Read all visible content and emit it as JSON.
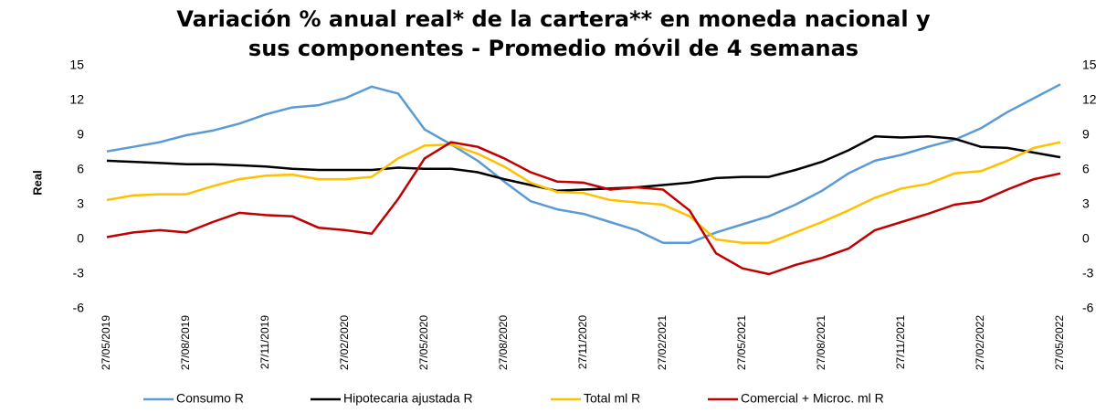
{
  "chart_data": {
    "type": "line",
    "title": [
      "Variación % anual real* de la cartera** en moneda nacional y",
      "sus componentes - Promedio móvil de 4 semanas"
    ],
    "ylabel": "Real",
    "categories": [
      "27/05/2019",
      null,
      null,
      "27/08/2019",
      null,
      null,
      "27/11/2019",
      null,
      null,
      "27/02/2020",
      null,
      null,
      "27/05/2020",
      null,
      null,
      "27/08/2020",
      null,
      null,
      "27/11/2020",
      null,
      null,
      "27/02/2021",
      null,
      null,
      "27/05/2021",
      null,
      null,
      "27/08/2021",
      null,
      null,
      "27/11/2021",
      null,
      null,
      "27/02/2022",
      null,
      null,
      "27/05/2022"
    ],
    "series": [
      {
        "name": "Consumo R",
        "color": "#5b9bd5",
        "values": [
          7.6,
          8.0,
          8.4,
          9.0,
          9.4,
          10.0,
          10.8,
          11.4,
          11.6,
          12.2,
          13.2,
          12.6,
          9.5,
          8.2,
          6.8,
          5.0,
          3.3,
          2.6,
          2.2,
          1.5,
          0.8,
          -0.3,
          -0.3,
          0.6,
          1.3,
          2.0,
          3.0,
          4.2,
          5.7,
          6.8,
          7.3,
          8.0,
          8.6,
          9.6,
          11.0,
          12.2,
          13.4
        ]
      },
      {
        "name": "Hipotecaria ajustada R",
        "color": "#000000",
        "values": [
          6.8,
          6.7,
          6.6,
          6.5,
          6.5,
          6.4,
          6.3,
          6.1,
          6.0,
          6.0,
          6.0,
          6.2,
          6.1,
          6.1,
          5.8,
          5.2,
          4.7,
          4.2,
          4.3,
          4.4,
          4.5,
          4.7,
          4.9,
          5.3,
          5.4,
          5.4,
          6.0,
          6.7,
          7.7,
          8.9,
          8.8,
          8.9,
          8.7,
          8.0,
          7.9,
          7.5,
          7.1
        ]
      },
      {
        "name": "Total ml R",
        "color": "#ffc000",
        "values": [
          3.4,
          3.8,
          3.9,
          3.9,
          4.6,
          5.2,
          5.5,
          5.6,
          5.2,
          5.2,
          5.4,
          7.0,
          8.1,
          8.2,
          7.4,
          6.3,
          4.9,
          4.1,
          4.0,
          3.4,
          3.2,
          3.0,
          2.0,
          0.0,
          -0.3,
          -0.3,
          0.6,
          1.5,
          2.5,
          3.6,
          4.4,
          4.8,
          5.7,
          5.9,
          6.8,
          7.9,
          8.4
        ]
      },
      {
        "name": "Comercial + Microc. ml R",
        "color": "#c00000",
        "values": [
          0.2,
          0.6,
          0.8,
          0.6,
          1.5,
          2.3,
          2.1,
          2.0,
          1.0,
          0.8,
          0.5,
          3.5,
          7.0,
          8.4,
          8.0,
          7.0,
          5.8,
          5.0,
          4.9,
          4.3,
          4.5,
          4.3,
          2.5,
          -1.2,
          -2.5,
          -3.0,
          -2.2,
          -1.6,
          -0.8,
          0.8,
          1.5,
          2.2,
          3.0,
          3.3,
          4.3,
          5.2,
          5.7
        ]
      }
    ],
    "ylim": [
      -6,
      15
    ],
    "yticks": [
      -6,
      -3,
      0,
      3,
      6,
      9,
      12,
      15
    ],
    "y2lim": [
      -6,
      15
    ],
    "y2ticks": [
      -6,
      -3,
      0,
      3,
      6,
      9,
      12,
      15
    ],
    "grid": false,
    "legend": "bottom"
  }
}
